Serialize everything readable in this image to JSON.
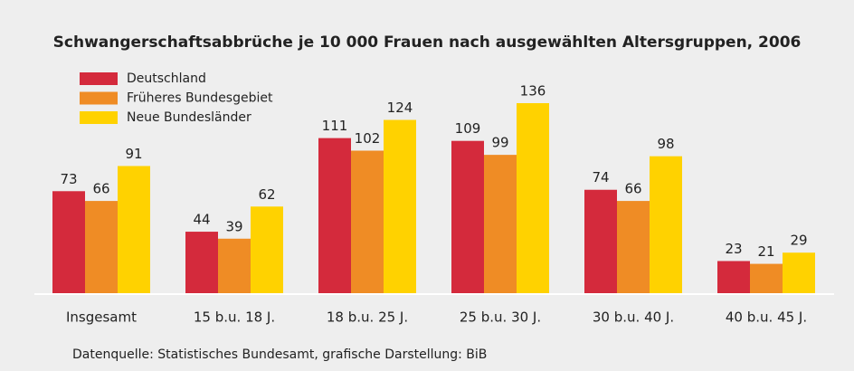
{
  "chart_data": {
    "type": "bar",
    "title": "Schwangerschaftsabbrüche je 10 000 Frauen nach ausgewählten Altersgruppen, 2006",
    "categories": [
      "Insgesamt",
      "15 b.u. 18 J.",
      "18 b.u. 25 J.",
      "25 b.u. 30 J.",
      "30 b.u. 40 J.",
      "40 b.u. 45 J."
    ],
    "series": [
      {
        "name": "Deutschland",
        "color": "#d42a3c",
        "values": [
          73,
          44,
          111,
          109,
          74,
          23
        ]
      },
      {
        "name": "Früheres Bundesgebiet",
        "color": "#ef8c25",
        "values": [
          66,
          39,
          102,
          99,
          66,
          21
        ]
      },
      {
        "name": "Neue Bundesländer",
        "color": "#ffd200",
        "values": [
          91,
          62,
          124,
          136,
          98,
          29
        ]
      }
    ],
    "legend": "top-left",
    "source": "Datenquelle: Statistisches Bundesamt, grafische Darstellung: BiB"
  }
}
